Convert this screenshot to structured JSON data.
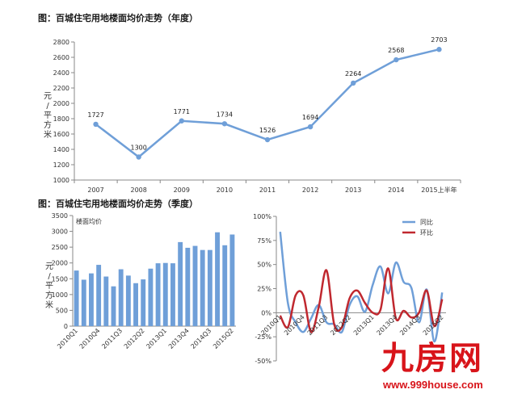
{
  "titles": {
    "annual": "图：百城住宅用地楼面均价走势（年度）",
    "quarterly": "图：百城住宅用地楼面均价走势（季度）"
  },
  "watermark": {
    "logo": "九房网",
    "url": "www.999house.com"
  },
  "colors": {
    "blue": "#6f9fd8",
    "bar": "#6f9fd8",
    "red": "#c0282f",
    "axis": "#888888",
    "watermark": "#d8141a"
  },
  "chart_data": [
    {
      "type": "line",
      "title": "图：百城住宅用地楼面均价走势（年度）",
      "ylabel": "元/平方米",
      "categories": [
        "2007",
        "2008",
        "2009",
        "2010",
        "2011",
        "2012",
        "2013",
        "2014",
        "2015上半年"
      ],
      "series": [
        {
          "values": [
            1727,
            1300,
            1771,
            1734,
            1526,
            1694,
            2264,
            2568,
            2703
          ]
        }
      ],
      "data_labels": [
        "1727",
        "1300",
        "1771",
        "1734",
        "1526",
        "1694",
        "2264",
        "2568",
        "2703"
      ],
      "ylim": [
        1000,
        2800
      ],
      "yticks": [
        "1000",
        "1200",
        "1400",
        "1600",
        "1800",
        "2000",
        "2200",
        "2400",
        "2600",
        "2800"
      ],
      "grid": false
    },
    {
      "type": "bar",
      "title": "图：百城住宅用地楼面均价走势（季度）",
      "ylabel": "元/平方米",
      "series": [
        {
          "name": "楼面均价",
          "values": [
            1760,
            1470,
            1670,
            1940,
            1570,
            1260,
            1800,
            1600,
            1360,
            1480,
            1820,
            1990,
            2000,
            1990,
            2660,
            2480,
            2540,
            2410,
            2410,
            2970,
            2560,
            2900
          ]
        }
      ],
      "xticklabels": [
        "2010Q1",
        "2010Q4",
        "2011Q3",
        "2012Q2",
        "2013Q1",
        "2013Q4",
        "2014Q3",
        "2015Q2"
      ],
      "ylim": [
        0,
        3500
      ],
      "yticks": [
        "0",
        "500",
        "1000",
        "1500",
        "2000",
        "2500",
        "3000",
        "3500"
      ],
      "legend": "top-left",
      "grid": false
    },
    {
      "type": "line",
      "ylim": [
        -50,
        100
      ],
      "yticks": [
        "-50%",
        "-25%",
        "0%",
        "25%",
        "50%",
        "75%",
        "100%"
      ],
      "xticklabels": [
        "2010Q1",
        "2010Q4",
        "2011Q3",
        "2012Q2",
        "2013Q1",
        "2013Q4",
        "2014Q3",
        "2015Q2"
      ],
      "legend": "top-right",
      "grid": false,
      "series": [
        {
          "name": "同比",
          "values": [
            84,
            10,
            -10,
            -20,
            -6,
            8,
            -10,
            -12,
            -20,
            8,
            17,
            1,
            29,
            48,
            20,
            52,
            32,
            26,
            -10,
            24,
            -30,
            21
          ]
        },
        {
          "name": "环比",
          "values": [
            -3,
            -15,
            18,
            18,
            -20,
            6,
            44,
            -12,
            -15,
            15,
            23,
            10,
            0,
            3,
            46,
            -6,
            2,
            -5,
            0,
            23,
            -14,
            14
          ]
        }
      ]
    }
  ]
}
